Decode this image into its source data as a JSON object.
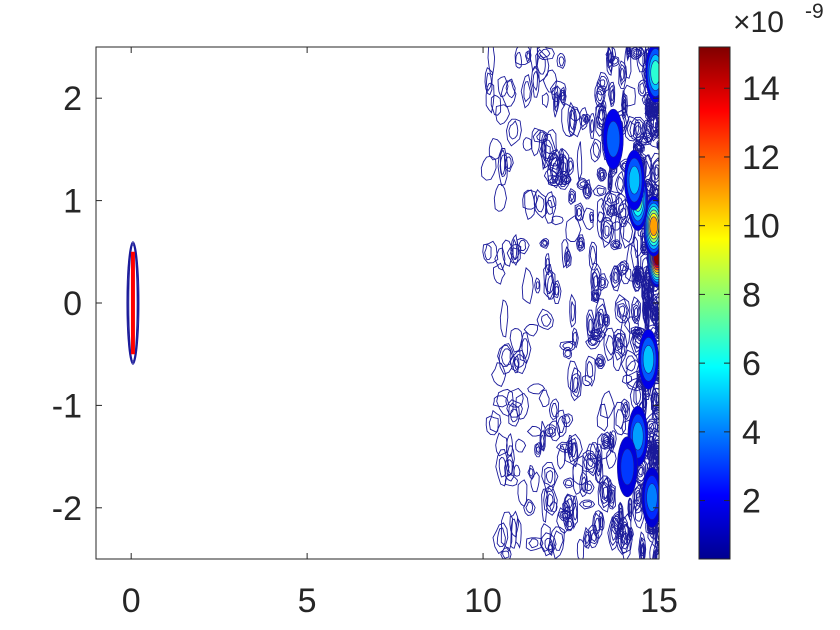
{
  "chart_data": {
    "type": "contour",
    "xlim": [
      -1,
      15
    ],
    "ylim": [
      -2.5,
      2.5
    ],
    "x_ticks": [
      0,
      5,
      10,
      15
    ],
    "x_tick_labels": [
      "0",
      "5",
      "10",
      "15"
    ],
    "y_ticks": [
      2,
      1,
      0,
      -1,
      -2
    ],
    "y_tick_labels": [
      "2",
      "1",
      "0",
      "-1",
      "-2"
    ],
    "colorbar": {
      "range": [
        0.3,
        15.2
      ],
      "ticks": [
        2,
        4,
        6,
        8,
        10,
        12,
        14
      ],
      "tick_labels": [
        "2",
        "4",
        "6",
        "8",
        "10",
        "12",
        "14"
      ],
      "exponent_label": "×10",
      "exponent_power": "-9",
      "colormap": "jet"
    },
    "source_segment": {
      "x": 0.05,
      "y_from": -0.5,
      "y_to": 0.5,
      "color": "#ff0000"
    },
    "hotspots": [
      {
        "x": 14.95,
        "y": 0.45,
        "value": 15
      },
      {
        "x": 14.85,
        "y": 0.75,
        "value": 11
      },
      {
        "x": 14.4,
        "y": 1.0,
        "value": 7.5
      },
      {
        "x": 14.9,
        "y": 2.25,
        "value": 6.5
      },
      {
        "x": 14.3,
        "y": 1.2,
        "value": 5
      },
      {
        "x": 14.7,
        "y": -0.55,
        "value": 5
      },
      {
        "x": 14.4,
        "y": -1.3,
        "value": 4.5
      },
      {
        "x": 14.8,
        "y": -1.9,
        "value": 4
      },
      {
        "x": 13.7,
        "y": 1.6,
        "value": 3.5
      },
      {
        "x": 14.1,
        "y": -1.6,
        "value": 3
      }
    ],
    "colors": {
      "axis": "#262626",
      "contour": "#1a1a9a",
      "background": "#ffffff"
    }
  }
}
